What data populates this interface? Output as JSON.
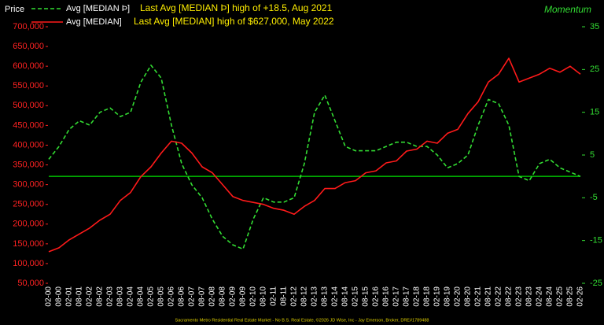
{
  "chart_data": {
    "type": "line",
    "y_label": "Price",
    "y2_label": "Momentum",
    "annotations": [
      "Last Avg [MEDIAN Þ] high of +18.5, Aug 2021",
      "Last Avg [MEDIAN] high of $627,000, May 2022"
    ],
    "footer": "Sacramento Metro Residential Real Estate Market - No B.S. Real Estate, ©2026 JD Wise, Inc - Jay Emerson, Broker, DRE#1789488",
    "categories": [
      "02-00",
      "08-00",
      "02-01",
      "08-01",
      "02-02",
      "08-02",
      "02-03",
      "08-03",
      "02-04",
      "08-04",
      "02-05",
      "08-05",
      "02-06",
      "08-06",
      "02-07",
      "08-07",
      "02-08",
      "08-08",
      "02-09",
      "08-09",
      "02-10",
      "08-10",
      "02-11",
      "08-11",
      "02-12",
      "08-12",
      "02-13",
      "08-13",
      "02-14",
      "08-14",
      "02-15",
      "08-15",
      "02-16",
      "08-16",
      "02-17",
      "08-17",
      "02-18",
      "08-18",
      "02-19",
      "08-19",
      "02-20",
      "08-20",
      "02-21",
      "08-21",
      "02-22",
      "08-22",
      "02-23",
      "08-23",
      "02-24",
      "08-24",
      "02-25",
      "08-25",
      "02-26"
    ],
    "series": [
      {
        "name": "Avg [MEDIAN Þ]",
        "color": "#33dd33",
        "dashed": true,
        "axis": "y2",
        "values": [
          4,
          7,
          11,
          13,
          12,
          15,
          16,
          14,
          15,
          22,
          26,
          23,
          12,
          3,
          -2,
          -5,
          -10,
          -14,
          -16,
          -17,
          -10,
          -5,
          -6,
          -6,
          -5,
          3,
          15,
          19,
          13,
          7,
          6,
          6,
          6,
          7,
          8,
          8,
          7,
          7,
          5,
          2,
          3,
          5,
          12,
          18,
          17,
          12,
          0,
          -1,
          3,
          4,
          2,
          1,
          0
        ]
      },
      {
        "name": "Avg [MEDIAN]",
        "color": "#ff1a1a",
        "dashed": false,
        "axis": "y",
        "values": [
          130000,
          140000,
          160000,
          175000,
          190000,
          210000,
          225000,
          260000,
          280000,
          320000,
          345000,
          380000,
          410000,
          405000,
          380000,
          345000,
          330000,
          300000,
          270000,
          260000,
          255000,
          250000,
          240000,
          235000,
          225000,
          245000,
          260000,
          290000,
          290000,
          305000,
          310000,
          330000,
          335000,
          355000,
          360000,
          385000,
          390000,
          410000,
          405000,
          430000,
          440000,
          480000,
          510000,
          560000,
          580000,
          620000,
          560000,
          570000,
          580000,
          595000,
          585000,
          600000,
          580000
        ]
      }
    ],
    "ylim": [
      50000,
      700000
    ],
    "yticks": [
      {
        "value": 50000,
        "label": "50,000"
      },
      {
        "value": 100000,
        "label": "100,000"
      },
      {
        "value": 150000,
        "label": "150,000"
      },
      {
        "value": 200000,
        "label": "200,000"
      },
      {
        "value": 250000,
        "label": "250,000"
      },
      {
        "value": 300000,
        "label": "300,000"
      },
      {
        "value": 350000,
        "label": "350,000"
      },
      {
        "value": 400000,
        "label": "400,000"
      },
      {
        "value": 450000,
        "label": "450,000"
      },
      {
        "value": 500000,
        "label": "500,000"
      },
      {
        "value": 550000,
        "label": "550,000"
      },
      {
        "value": 600000,
        "label": "600,000"
      },
      {
        "value": 650000,
        "label": "650,000"
      },
      {
        "value": 700000,
        "label": "700,000"
      }
    ],
    "y2lim": [
      -25,
      35
    ],
    "y2ticks": [
      -25,
      -15,
      -5,
      5,
      15,
      25,
      35
    ],
    "reference_line": {
      "axis": "y2",
      "value": 0,
      "color": "#00c000"
    },
    "y_tick_color": "#ff2222",
    "y2_tick_color": "#33dd33",
    "grid": false
  }
}
